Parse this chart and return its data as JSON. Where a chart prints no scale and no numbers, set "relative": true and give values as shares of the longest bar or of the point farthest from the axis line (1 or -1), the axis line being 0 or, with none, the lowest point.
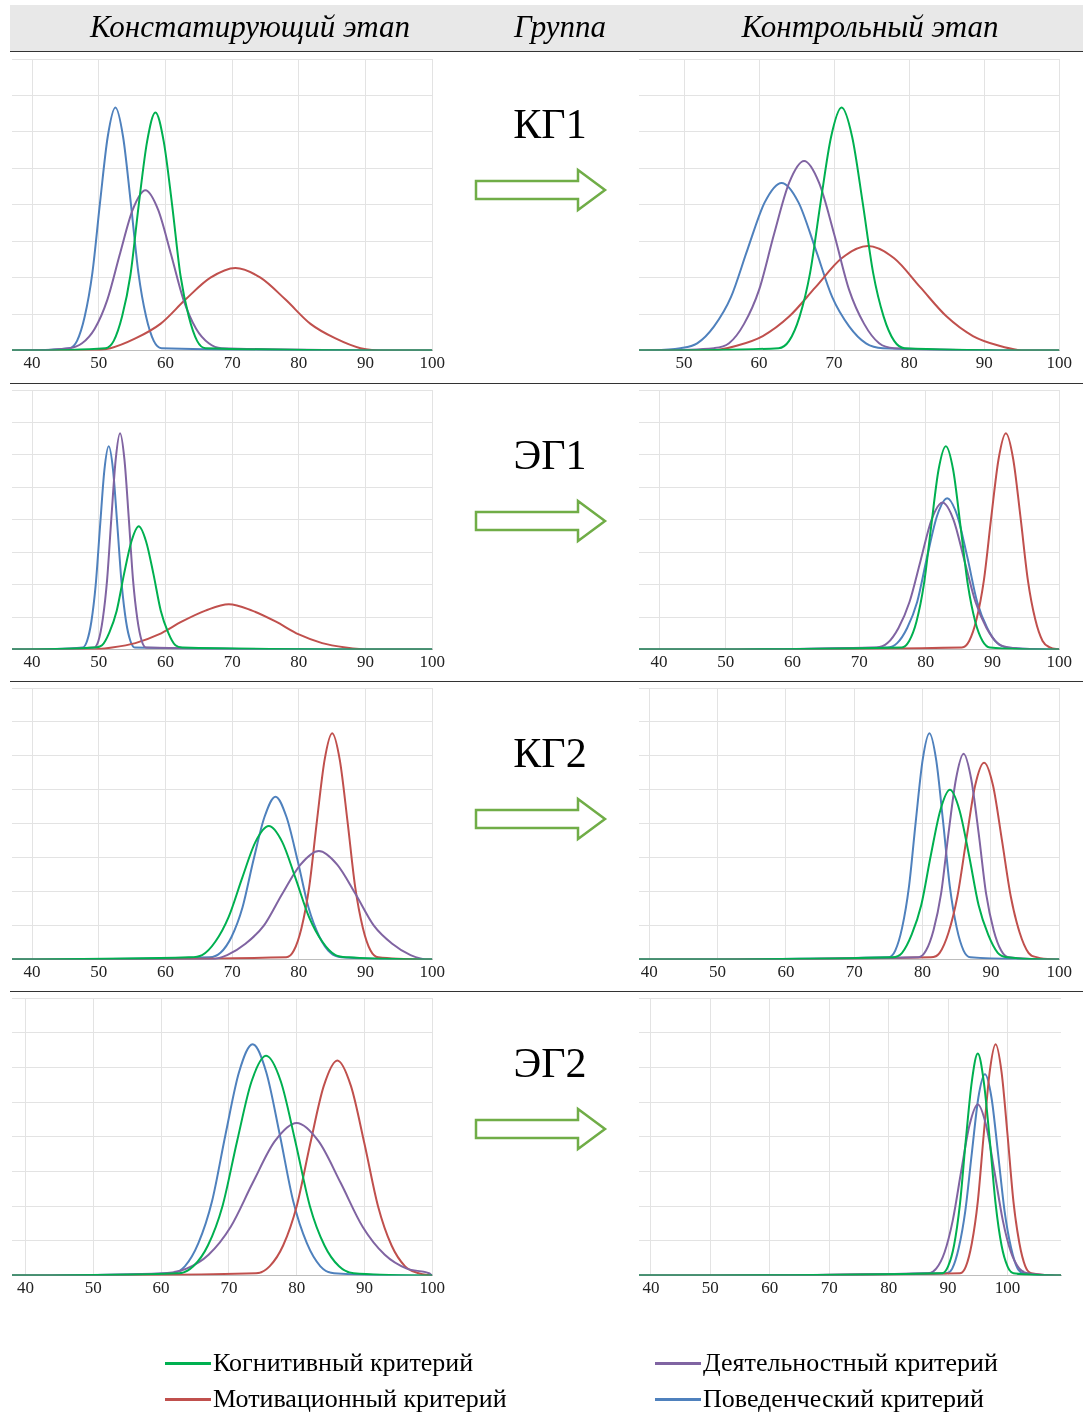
{
  "chart_data": [
    {
      "type": "other",
      "annotations": [
        "Констатирующий этап",
        "Группа",
        "Контрольный этап"
      ]
    },
    {
      "type": "line",
      "relative": true,
      "grid": true,
      "tick_labels": "x",
      "marker": "none",
      "xlim": [
        37,
        100
      ],
      "xticks": [
        40,
        50,
        60,
        70,
        80,
        90,
        100
      ],
      "series": [
        {
          "color": "#00b050",
          "x": [
            37,
            51,
            52.25,
            53.5,
            54.75,
            56,
            57.25,
            58.5,
            59.75,
            61,
            62.25,
            63.5,
            64.75,
            66,
            100
          ],
          "values": [
            0,
            0.01,
            0.04,
            0.14,
            0.31,
            0.6,
            0.86,
            0.98,
            0.86,
            0.6,
            0.31,
            0.14,
            0.04,
            0.01,
            0
          ]
        },
        {
          "color": "#8064a2",
          "x": [
            37,
            45.6,
            47.5,
            49.4,
            51.3,
            53.2,
            55.1,
            57,
            58.9,
            60.8,
            62.7,
            64.6,
            66.5,
            68.4,
            100
          ],
          "values": [
            0,
            0.01,
            0.03,
            0.09,
            0.21,
            0.4,
            0.58,
            0.66,
            0.58,
            0.4,
            0.21,
            0.09,
            0.03,
            0.01,
            0
          ]
        },
        {
          "color": "#c0504d",
          "x": [
            37,
            48,
            51.75,
            55.5,
            59.25,
            63,
            66.75,
            70.5,
            74.25,
            78,
            81.75,
            85.5,
            89.25,
            93,
            100
          ],
          "values": [
            0,
            0,
            0.01,
            0.05,
            0.11,
            0.21,
            0.3,
            0.34,
            0.3,
            0.21,
            0.11,
            0.05,
            0.01,
            0,
            0
          ]
        },
        {
          "color": "#4f81bd",
          "x": [
            37,
            45.6,
            46.75,
            47.9,
            49.05,
            50.2,
            51.35,
            52.5,
            53.65,
            54.8,
            55.95,
            57.1,
            58.25,
            59.4,
            100
          ],
          "values": [
            0,
            0.01,
            0.04,
            0.14,
            0.32,
            0.61,
            0.88,
            1,
            0.88,
            0.61,
            0.32,
            0.14,
            0.04,
            0.01,
            0
          ]
        }
      ]
    },
    {
      "type": "line",
      "title": "КГ1",
      "relative": true,
      "grid": true,
      "tick_labels": "x",
      "marker": "none",
      "xlim": [
        44,
        100
      ],
      "xticks": [
        50,
        60,
        70,
        80,
        90,
        100
      ],
      "series": [
        {
          "color": "#00b050",
          "x": [
            44,
            62.6,
            64,
            65.4,
            66.8,
            68.2,
            69.6,
            71,
            72.4,
            73.8,
            75.2,
            76.6,
            78,
            79.4,
            100
          ],
          "values": [
            0,
            0.01,
            0.04,
            0.14,
            0.32,
            0.61,
            0.88,
            1,
            0.88,
            0.61,
            0.32,
            0.14,
            0.04,
            0.01,
            0
          ]
        },
        {
          "color": "#8064a2",
          "x": [
            44,
            54,
            56,
            58,
            60,
            62,
            64,
            66,
            68,
            70,
            72,
            74,
            76,
            78,
            100
          ],
          "values": [
            0,
            0.01,
            0.03,
            0.11,
            0.25,
            0.48,
            0.69,
            0.78,
            0.69,
            0.48,
            0.25,
            0.11,
            0.03,
            0.01,
            0
          ]
        },
        {
          "color": "#c0504d",
          "x": [
            44,
            53.5,
            57,
            60.5,
            64,
            67.5,
            71,
            74.5,
            78,
            81.5,
            85,
            88.5,
            92,
            95.5,
            100
          ],
          "values": [
            0,
            0,
            0.02,
            0.06,
            0.14,
            0.26,
            0.38,
            0.43,
            0.38,
            0.26,
            0.14,
            0.06,
            0.02,
            0,
            0
          ]
        },
        {
          "color": "#4f81bd",
          "x": [
            44,
            49.5,
            51.75,
            54,
            56.25,
            58.5,
            60.75,
            63,
            65.25,
            67.5,
            69.75,
            72,
            74.25,
            76.5,
            100
          ],
          "values": [
            0,
            0.01,
            0.03,
            0.1,
            0.22,
            0.42,
            0.61,
            0.69,
            0.61,
            0.42,
            0.22,
            0.1,
            0.03,
            0.01,
            0
          ]
        }
      ]
    },
    {
      "type": "line",
      "relative": true,
      "grid": true,
      "tick_labels": "x",
      "marker": "none",
      "xlim": [
        37,
        100
      ],
      "xticks": [
        40,
        50,
        60,
        70,
        80,
        90,
        100
      ],
      "series": [
        {
          "color": "#00b050",
          "x": [
            37,
            49.4,
            50.5,
            51.6,
            52.7,
            53.8,
            54.9,
            56,
            57.1,
            58.2,
            59.3,
            60.4,
            61.5,
            62.6,
            100
          ],
          "values": [
            0,
            0.01,
            0.02,
            0.08,
            0.18,
            0.35,
            0.5,
            0.57,
            0.5,
            0.35,
            0.18,
            0.08,
            0.02,
            0.01,
            0
          ]
        },
        {
          "color": "#8064a2",
          "x": [
            37,
            49.3,
            49.95,
            50.6,
            51.25,
            51.9,
            52.55,
            53.2,
            53.85,
            54.5,
            55.15,
            55.8,
            56.45,
            57.1,
            100
          ],
          "values": [
            0,
            0.01,
            0.04,
            0.14,
            0.32,
            0.61,
            0.88,
            1,
            0.88,
            0.61,
            0.32,
            0.14,
            0.04,
            0.01,
            0
          ]
        },
        {
          "color": "#c0504d",
          "x": [
            37,
            48.5,
            52,
            55.5,
            59,
            62.5,
            66,
            69.5,
            73,
            76.5,
            80,
            83.5,
            87,
            90.5,
            100
          ],
          "values": [
            0,
            0,
            0.01,
            0.03,
            0.07,
            0.13,
            0.18,
            0.21,
            0.18,
            0.13,
            0.07,
            0.03,
            0.01,
            0,
            0
          ]
        },
        {
          "color": "#4f81bd",
          "x": [
            37,
            47.6,
            48.25,
            48.9,
            49.55,
            50.2,
            50.85,
            51.5,
            52.15,
            52.8,
            53.45,
            54.1,
            54.75,
            55.4,
            100
          ],
          "values": [
            0,
            0.01,
            0.04,
            0.13,
            0.3,
            0.57,
            0.83,
            0.94,
            0.83,
            0.57,
            0.3,
            0.13,
            0.04,
            0.01,
            0
          ]
        }
      ]
    },
    {
      "type": "line",
      "title": "ЭГ1",
      "relative": true,
      "grid": true,
      "tick_labels": "x",
      "marker": "none",
      "xlim": [
        37,
        100
      ],
      "xticks": [
        40,
        50,
        60,
        70,
        80,
        90,
        100
      ],
      "series": [
        {
          "color": "#00b050",
          "x": [
            37,
            76.4,
            77.5,
            78.6,
            79.7,
            80.8,
            81.9,
            83,
            84.1,
            85.2,
            86.3,
            87.4,
            88.5,
            89.6,
            100
          ],
          "values": [
            0,
            0.01,
            0.04,
            0.13,
            0.3,
            0.57,
            0.83,
            0.94,
            0.83,
            0.57,
            0.3,
            0.13,
            0.04,
            0.01,
            0
          ]
        },
        {
          "color": "#8064a2",
          "x": [
            37,
            72.6,
            74.25,
            75.9,
            77.55,
            79.2,
            80.85,
            82.5,
            84.15,
            85.8,
            87.45,
            89.1,
            90.75,
            92.4,
            100
          ],
          "values": [
            0,
            0.01,
            0.03,
            0.1,
            0.22,
            0.41,
            0.6,
            0.68,
            0.6,
            0.41,
            0.22,
            0.1,
            0.03,
            0.01,
            0
          ]
        },
        {
          "color": "#c0504d",
          "x": [
            37,
            85.4,
            86.5,
            87.6,
            88.7,
            89.8,
            90.9,
            92,
            93.1,
            94.2,
            95.3,
            96.4,
            97.5,
            98.6,
            100
          ],
          "values": [
            0,
            0.01,
            0.04,
            0.14,
            0.32,
            0.61,
            0.88,
            1,
            0.88,
            0.61,
            0.32,
            0.14,
            0.04,
            0.01,
            0
          ]
        },
        {
          "color": "#4f81bd",
          "x": [
            37,
            74.2,
            75.7,
            77.2,
            78.7,
            80.2,
            81.7,
            83.2,
            84.7,
            86.2,
            87.7,
            89.2,
            90.7,
            92.2,
            100
          ],
          "values": [
            0,
            0.01,
            0.03,
            0.1,
            0.22,
            0.43,
            0.62,
            0.7,
            0.62,
            0.43,
            0.22,
            0.1,
            0.03,
            0.01,
            0
          ]
        }
      ]
    },
    {
      "type": "line",
      "relative": true,
      "grid": true,
      "tick_labels": "x",
      "marker": "none",
      "xlim": [
        37,
        100
      ],
      "xticks": [
        40,
        50,
        60,
        70,
        80,
        90,
        100
      ],
      "series": [
        {
          "color": "#00b050",
          "x": [
            37,
            63.5,
            65.5,
            67.5,
            69.5,
            71.5,
            73.5,
            75.5,
            77.5,
            79.5,
            81.5,
            83.5,
            85.5,
            87.5,
            100
          ],
          "values": [
            0,
            0.01,
            0.02,
            0.08,
            0.19,
            0.36,
            0.52,
            0.59,
            0.52,
            0.36,
            0.19,
            0.08,
            0.02,
            0.01,
            0
          ]
        },
        {
          "color": "#8064a2",
          "x": [
            37,
            66.5,
            69.25,
            72,
            74.75,
            77.5,
            80.25,
            83,
            85.75,
            88.5,
            91.25,
            94,
            96.75,
            99.5,
            100
          ],
          "values": [
            0,
            0,
            0.02,
            0.07,
            0.15,
            0.29,
            0.42,
            0.48,
            0.42,
            0.29,
            0.15,
            0.07,
            0.02,
            0,
            0
          ]
        },
        {
          "color": "#c0504d",
          "x": [
            37,
            78.1,
            79.25,
            80.4,
            81.55,
            82.7,
            83.85,
            85,
            86.15,
            87.3,
            88.45,
            89.6,
            90.75,
            91.9,
            100
          ],
          "values": [
            0,
            0.01,
            0.04,
            0.14,
            0.32,
            0.61,
            0.88,
            1,
            0.88,
            0.61,
            0.32,
            0.14,
            0.04,
            0.01,
            0
          ]
        },
        {
          "color": "#4f81bd",
          "x": [
            37,
            66.6,
            68.25,
            69.9,
            71.55,
            73.2,
            74.85,
            76.5,
            78.15,
            79.8,
            81.45,
            83.1,
            84.75,
            86.4,
            100
          ],
          "values": [
            0,
            0.01,
            0.03,
            0.1,
            0.23,
            0.44,
            0.63,
            0.72,
            0.63,
            0.44,
            0.23,
            0.1,
            0.03,
            0.01,
            0
          ]
        }
      ]
    },
    {
      "type": "line",
      "title": "КГ2",
      "relative": true,
      "grid": true,
      "tick_labels": "x",
      "marker": "none",
      "xlim": [
        38.5,
        100
      ],
      "xticks": [
        40,
        50,
        60,
        70,
        80,
        90,
        100
      ],
      "series": [
        {
          "color": "#00b050",
          "x": [
            38.5,
            75.6,
            77,
            78.4,
            79.8,
            81.2,
            82.6,
            84,
            85.4,
            86.8,
            88.2,
            89.6,
            91,
            92.4,
            100
          ],
          "values": [
            0,
            0.01,
            0.03,
            0.11,
            0.24,
            0.46,
            0.66,
            0.75,
            0.66,
            0.46,
            0.24,
            0.11,
            0.03,
            0.01,
            0
          ]
        },
        {
          "color": "#8064a2",
          "x": [
            38.5,
            79.4,
            80.5,
            81.6,
            82.7,
            83.8,
            84.9,
            86,
            87.1,
            88.2,
            89.3,
            90.4,
            91.5,
            92.6,
            100
          ],
          "values": [
            0,
            0.01,
            0.04,
            0.13,
            0.29,
            0.56,
            0.8,
            0.91,
            0.8,
            0.56,
            0.29,
            0.13,
            0.04,
            0.01,
            0
          ]
        },
        {
          "color": "#c0504d",
          "x": [
            38.5,
            81.2,
            82.5,
            83.8,
            85.1,
            86.4,
            87.7,
            89,
            90.3,
            91.6,
            92.9,
            94.2,
            95.5,
            96.8,
            100
          ],
          "values": [
            0,
            0.01,
            0.03,
            0.12,
            0.28,
            0.53,
            0.77,
            0.87,
            0.77,
            0.53,
            0.28,
            0.12,
            0.03,
            0.01,
            0
          ]
        },
        {
          "color": "#4f81bd",
          "x": [
            38.5,
            75,
            76,
            77,
            78,
            79,
            80,
            81,
            82,
            83,
            84,
            85,
            86,
            87,
            100
          ],
          "values": [
            0,
            0.01,
            0.04,
            0.14,
            0.32,
            0.61,
            0.88,
            1,
            0.88,
            0.61,
            0.32,
            0.14,
            0.04,
            0.01,
            0
          ]
        }
      ]
    },
    {
      "type": "line",
      "relative": true,
      "grid": true,
      "tick_labels": "x",
      "marker": "none",
      "xlim": [
        38,
        100
      ],
      "xticks": [
        40,
        50,
        60,
        70,
        80,
        90,
        100
      ],
      "series": [
        {
          "color": "#00b050",
          "x": [
            38,
            62.6,
            64.75,
            66.9,
            69.05,
            71.2,
            73.35,
            75.5,
            77.65,
            79.8,
            81.95,
            84.1,
            86.25,
            88.4,
            100
          ],
          "values": [
            0,
            0.01,
            0.04,
            0.13,
            0.3,
            0.58,
            0.84,
            0.95,
            0.84,
            0.58,
            0.3,
            0.13,
            0.04,
            0.01,
            0
          ]
        },
        {
          "color": "#8064a2",
          "x": [
            38,
            60.5,
            63.75,
            67,
            70.25,
            73.5,
            76.75,
            80,
            83.25,
            86.5,
            89.75,
            93,
            96.25,
            99.5,
            100
          ],
          "values": [
            0,
            0.01,
            0.03,
            0.09,
            0.21,
            0.4,
            0.58,
            0.66,
            0.58,
            0.4,
            0.21,
            0.09,
            0.03,
            0.01,
            0
          ]
        },
        {
          "color": "#c0504d",
          "x": [
            38,
            74,
            76,
            78,
            80,
            82,
            84,
            86,
            88,
            90,
            92,
            94,
            96,
            98,
            100
          ],
          "values": [
            0,
            0.01,
            0.04,
            0.13,
            0.3,
            0.57,
            0.82,
            0.93,
            0.82,
            0.57,
            0.3,
            0.13,
            0.04,
            0.01,
            0
          ]
        },
        {
          "color": "#4f81bd",
          "x": [
            38,
            61.5,
            63.5,
            65.5,
            67.5,
            69.5,
            71.5,
            73.5,
            75.5,
            77.5,
            79.5,
            81.5,
            83.5,
            85.5,
            100
          ],
          "values": [
            0,
            0.01,
            0.04,
            0.14,
            0.32,
            0.61,
            0.88,
            1,
            0.88,
            0.61,
            0.32,
            0.14,
            0.04,
            0.01,
            0
          ]
        }
      ]
    },
    {
      "type": "line",
      "title": "ЭГ2",
      "relative": true,
      "grid": true,
      "tick_labels": "x",
      "marker": "none",
      "legend": "bottom",
      "xlim": [
        38,
        109
      ],
      "xticks": [
        40,
        50,
        60,
        70,
        80,
        90,
        100
      ],
      "series": [
        {
          "name": "Когнитивный критерий",
          "color": "#00b050",
          "x": [
            38,
            89,
            90,
            91,
            92,
            93,
            94,
            95,
            96,
            97,
            98,
            99,
            100,
            101,
            109
          ],
          "values": [
            0,
            0.01,
            0.04,
            0.13,
            0.31,
            0.59,
            0.84,
            0.96,
            0.84,
            0.59,
            0.31,
            0.13,
            0.04,
            0.01,
            0
          ]
        },
        {
          "name": "Деятельностный критерий",
          "color": "#8064a2",
          "x": [
            38,
            86.6,
            88,
            89.4,
            90.8,
            92.2,
            93.6,
            95,
            96.4,
            97.8,
            99.2,
            100.6,
            102,
            103.4,
            109
          ],
          "values": [
            0,
            0.01,
            0.03,
            0.1,
            0.24,
            0.45,
            0.65,
            0.74,
            0.65,
            0.45,
            0.24,
            0.1,
            0.03,
            0.01,
            0
          ]
        },
        {
          "name": "Мотивационный критерий",
          "color": "#c0504d",
          "x": [
            38,
            92,
            93,
            94,
            95,
            96,
            97,
            98,
            99,
            100,
            101,
            102,
            103,
            104,
            109
          ],
          "values": [
            0,
            0.01,
            0.04,
            0.14,
            0.32,
            0.61,
            0.88,
            1,
            0.88,
            0.61,
            0.32,
            0.14,
            0.04,
            0.01,
            0
          ]
        },
        {
          "name": "Поведенческий критерий",
          "color": "#4f81bd",
          "x": [
            38,
            89.6,
            90.7,
            91.8,
            92.9,
            94,
            95.1,
            96.2,
            97.3,
            98.4,
            99.5,
            100.6,
            101.7,
            102.8,
            109
          ],
          "values": [
            0,
            0.01,
            0.03,
            0.12,
            0.28,
            0.53,
            0.77,
            0.87,
            0.77,
            0.53,
            0.28,
            0.12,
            0.03,
            0.01,
            0
          ]
        }
      ]
    }
  ]
}
